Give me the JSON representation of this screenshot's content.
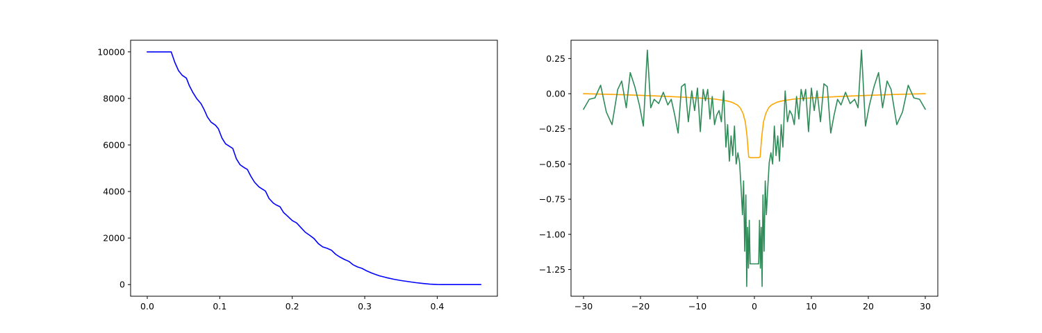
{
  "colors": {
    "left_line": "#0000ff",
    "right_smooth": "#ffa500",
    "right_noisy": "#2e8b57",
    "axes": "#000000",
    "background": "#ffffff"
  },
  "chart_data": [
    {
      "type": "line",
      "title": "",
      "xlabel": "",
      "ylabel": "",
      "xlim": [
        -0.023,
        0.483
      ],
      "ylim": [
        -500,
        10500
      ],
      "grid": false,
      "xticks": [
        0.0,
        0.1,
        0.2,
        0.3,
        0.4
      ],
      "xtick_labels": [
        "0.0",
        "0.1",
        "0.2",
        "0.3",
        "0.4"
      ],
      "yticks": [
        0,
        2000,
        4000,
        6000,
        8000,
        10000
      ],
      "ytick_labels": [
        "0",
        "2000",
        "4000",
        "6000",
        "8000",
        "10000"
      ],
      "series": [
        {
          "color": "#0000ff",
          "x": [
            0.0,
            0.01,
            0.02,
            0.033,
            0.038,
            0.043,
            0.048,
            0.054,
            0.058,
            0.063,
            0.068,
            0.074,
            0.078,
            0.083,
            0.088,
            0.094,
            0.098,
            0.103,
            0.108,
            0.114,
            0.118,
            0.123,
            0.128,
            0.134,
            0.138,
            0.143,
            0.148,
            0.154,
            0.158,
            0.163,
            0.168,
            0.174,
            0.178,
            0.183,
            0.188,
            0.194,
            0.2,
            0.206,
            0.212,
            0.218,
            0.224,
            0.23,
            0.236,
            0.242,
            0.248,
            0.254,
            0.26,
            0.266,
            0.272,
            0.278,
            0.284,
            0.29,
            0.296,
            0.302,
            0.31,
            0.32,
            0.33,
            0.34,
            0.35,
            0.36,
            0.37,
            0.38,
            0.39,
            0.4,
            0.41,
            0.42,
            0.43,
            0.44,
            0.45,
            0.46
          ],
          "y": [
            10000,
            10000,
            10000,
            10000,
            9550,
            9200,
            9000,
            8870,
            8550,
            8250,
            8000,
            7780,
            7550,
            7200,
            6980,
            6850,
            6700,
            6300,
            6050,
            5930,
            5850,
            5400,
            5150,
            5020,
            4950,
            4650,
            4400,
            4200,
            4120,
            4020,
            3700,
            3500,
            3420,
            3350,
            3100,
            2930,
            2750,
            2650,
            2450,
            2250,
            2120,
            1980,
            1760,
            1620,
            1560,
            1480,
            1300,
            1180,
            1080,
            1000,
            850,
            760,
            700,
            600,
            490,
            380,
            300,
            230,
            175,
            130,
            85,
            50,
            20,
            5,
            0,
            0,
            0,
            0,
            0,
            0
          ]
        }
      ]
    },
    {
      "type": "line",
      "title": "",
      "xlabel": "",
      "ylabel": "",
      "xlim": [
        -32.2,
        32.2
      ],
      "ylim": [
        -1.44,
        0.38
      ],
      "grid": false,
      "xticks": [
        -30,
        -20,
        -10,
        0,
        10,
        20,
        30
      ],
      "xtick_labels": [
        "−30",
        "−20",
        "−10",
        "0",
        "10",
        "20",
        "30"
      ],
      "yticks": [
        0.25,
        0.0,
        -0.25,
        -0.5,
        -0.75,
        -1.0,
        -1.25
      ],
      "ytick_labels": [
        "0.25",
        "0.00",
        "−0.25",
        "−0.50",
        "−0.75",
        "−1.00",
        "−1.25"
      ],
      "series": [
        {
          "color": "#ffa500",
          "x": [
            -30,
            -25,
            -20,
            -15,
            -10,
            -7,
            -5,
            -4,
            -3,
            -2.5,
            -2,
            -1.6,
            -1.3,
            -1.0,
            -0.7,
            0,
            0.7,
            1.0,
            1.3,
            1.6,
            2,
            2.5,
            3,
            4,
            5,
            7,
            10,
            15,
            20,
            25,
            30
          ],
          "y": [
            0.0,
            -0.005,
            -0.012,
            -0.02,
            -0.03,
            -0.038,
            -0.05,
            -0.06,
            -0.08,
            -0.1,
            -0.14,
            -0.2,
            -0.3,
            -0.45,
            -0.455,
            -0.455,
            -0.455,
            -0.45,
            -0.3,
            -0.2,
            -0.14,
            -0.1,
            -0.08,
            -0.06,
            -0.05,
            -0.038,
            -0.03,
            -0.02,
            -0.012,
            -0.005,
            0.0
          ]
        },
        {
          "color": "#2e8b57",
          "x": [
            -30,
            -29,
            -28,
            -27,
            -26,
            -25,
            -24,
            -23.3,
            -22.5,
            -21.8,
            -21,
            -20.2,
            -19.5,
            -18.8,
            -18.2,
            -17.6,
            -16.8,
            -16,
            -15.2,
            -14.6,
            -14,
            -13.4,
            -12.8,
            -12.2,
            -11.6,
            -11,
            -10.5,
            -10,
            -9.5,
            -9,
            -8.6,
            -8.2,
            -7.8,
            -7.4,
            -7,
            -6.6,
            -6.2,
            -5.8,
            -5.4,
            -5,
            -4.7,
            -4.4,
            -4.1,
            -3.8,
            -3.5,
            -3.2,
            -2.9,
            -2.6,
            -2.3,
            -2.1,
            -1.9,
            -1.7,
            -1.5,
            -1.35,
            -1.2,
            -1.05,
            -0.9,
            -0.75,
            -0.75,
            0.75,
            0.75,
            0.9,
            1.05,
            1.2,
            1.35,
            1.5,
            1.7,
            1.9,
            2.1,
            2.3,
            2.6,
            2.9,
            3.2,
            3.5,
            3.8,
            4.1,
            4.4,
            4.7,
            5,
            5.4,
            5.8,
            6.2,
            6.6,
            7,
            7.4,
            7.8,
            8.2,
            8.6,
            9,
            9.5,
            10,
            10.5,
            11,
            11.6,
            12.2,
            12.8,
            13.4,
            14,
            14.6,
            15.2,
            16,
            16.8,
            17.6,
            18.2,
            18.8,
            19.5,
            20.2,
            21,
            21.8,
            22.5,
            23.3,
            24,
            25,
            26,
            27,
            28,
            29,
            30
          ],
          "y": [
            -0.11,
            -0.04,
            -0.03,
            0.06,
            -0.13,
            -0.22,
            0.03,
            0.09,
            -0.1,
            0.15,
            0.05,
            -0.08,
            -0.23,
            0.31,
            -0.1,
            -0.04,
            -0.07,
            0.01,
            -0.08,
            -0.04,
            -0.15,
            -0.28,
            0.05,
            0.07,
            -0.2,
            0.02,
            -0.12,
            0.04,
            -0.27,
            0.03,
            -0.05,
            0.03,
            -0.18,
            -0.02,
            -0.22,
            -0.15,
            -0.12,
            -0.2,
            0.02,
            -0.38,
            -0.22,
            -0.48,
            -0.3,
            -0.44,
            -0.23,
            -0.5,
            -0.42,
            -0.49,
            -0.7,
            -0.86,
            -0.62,
            -1.12,
            -0.72,
            -1.37,
            -0.95,
            -1.24,
            -0.9,
            -1.21,
            -1.21,
            -1.21,
            -1.21,
            -0.9,
            -1.24,
            -0.95,
            -1.37,
            -0.72,
            -1.12,
            -0.62,
            -0.86,
            -0.7,
            -0.49,
            -0.42,
            -0.5,
            -0.23,
            -0.44,
            -0.3,
            -0.48,
            -0.22,
            -0.38,
            0.02,
            -0.2,
            -0.12,
            -0.15,
            -0.22,
            -0.02,
            -0.18,
            0.03,
            -0.05,
            0.03,
            -0.27,
            0.04,
            -0.12,
            0.02,
            -0.2,
            0.07,
            0.05,
            -0.28,
            -0.15,
            -0.04,
            -0.08,
            0.01,
            -0.07,
            -0.04,
            -0.1,
            0.31,
            -0.23,
            -0.08,
            0.05,
            0.15,
            -0.1,
            0.09,
            0.03,
            -0.22,
            -0.13,
            0.06,
            -0.03,
            -0.04,
            -0.11
          ]
        }
      ]
    }
  ]
}
